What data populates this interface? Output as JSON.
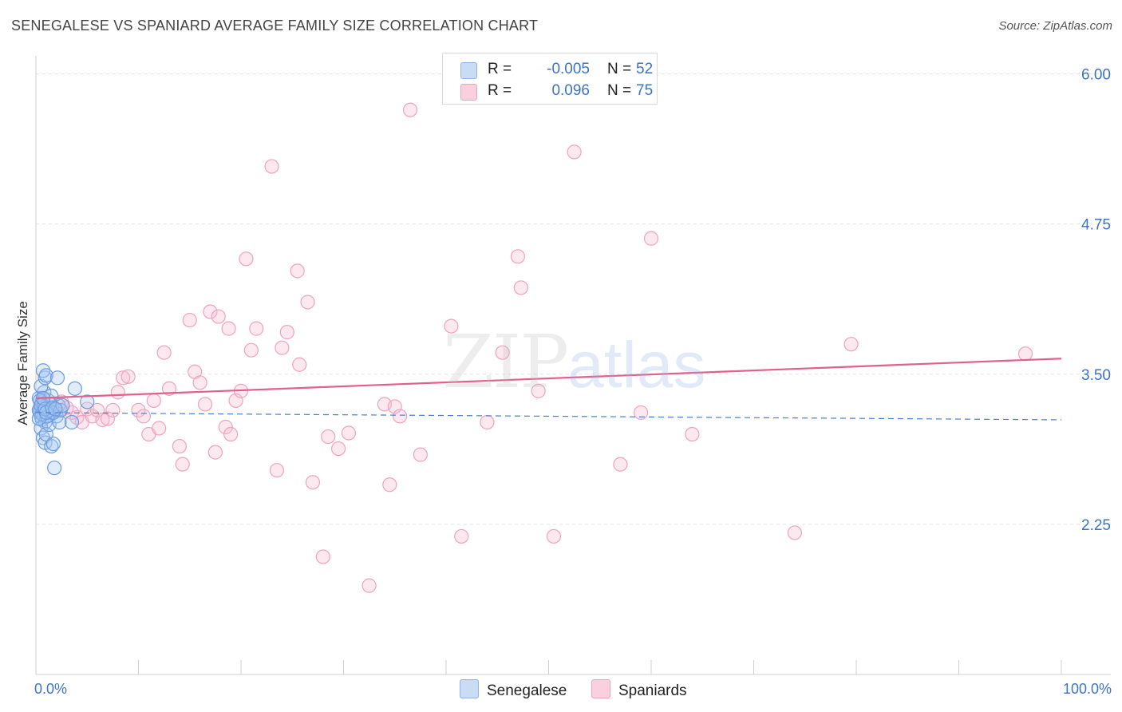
{
  "header": {
    "title": "SENEGALESE VS SPANIARD AVERAGE FAMILY SIZE CORRELATION CHART",
    "source": "Source: ZipAtlas.com"
  },
  "watermark": {
    "left": "ZIP",
    "right": "atlas"
  },
  "legend": {
    "rows": [
      {
        "label": "R =",
        "r": "-0.005",
        "n_label": "N =",
        "n": "52",
        "color": "#aac8f0"
      },
      {
        "label": "R =",
        "r": "0.096",
        "n_label": "N =",
        "n": "75",
        "color": "#f7bcd0"
      }
    ]
  },
  "bottom_legend": [
    {
      "label": "Senegalese",
      "color": "#aac8f0"
    },
    {
      "label": "Spaniards",
      "color": "#f7bcd0"
    }
  ],
  "chart_data": {
    "type": "scatter",
    "title": "SENEGALESE VS SPANIARD AVERAGE FAMILY SIZE CORRELATION CHART",
    "xlabel": "",
    "ylabel": "Average Family Size",
    "xlim": [
      0,
      100
    ],
    "ylim": [
      1.0,
      6.15
    ],
    "x_tick_labels": [
      "0.0%",
      "100.0%"
    ],
    "y_ticks": [
      2.25,
      3.5,
      4.75,
      6.0
    ],
    "y_tick_labels": [
      "2.25",
      "3.50",
      "4.75",
      "6.00"
    ],
    "colors": {
      "senegalese": "#5a8fd6",
      "spaniards": "#e57aa0",
      "senegalese_line": "#4a7fd0",
      "spaniards_line": "#e0608e"
    },
    "series": [
      {
        "name": "Senegalese",
        "trend": {
          "x": [
            0,
            100
          ],
          "y": [
            3.18,
            3.12
          ],
          "style": "dashed"
        },
        "points": [
          [
            0.3,
            3.3
          ],
          [
            0.4,
            3.22
          ],
          [
            0.5,
            3.15
          ],
          [
            0.6,
            3.27
          ],
          [
            0.7,
            3.2
          ],
          [
            0.8,
            3.35
          ],
          [
            0.5,
            3.4
          ],
          [
            0.9,
            3.47
          ],
          [
            0.7,
            3.53
          ],
          [
            1.0,
            3.49
          ],
          [
            0.4,
            3.18
          ],
          [
            0.6,
            3.12
          ],
          [
            0.8,
            3.25
          ],
          [
            1.1,
            3.22
          ],
          [
            1.2,
            3.28
          ],
          [
            1.3,
            3.16
          ],
          [
            0.9,
            3.1
          ],
          [
            1.4,
            3.2
          ],
          [
            1.5,
            3.32
          ],
          [
            1.6,
            3.18
          ],
          [
            0.5,
            3.05
          ],
          [
            0.7,
            2.97
          ],
          [
            0.9,
            2.93
          ],
          [
            1.0,
            3.0
          ],
          [
            1.3,
            3.08
          ],
          [
            1.5,
            2.9
          ],
          [
            1.7,
            2.92
          ],
          [
            1.8,
            2.72
          ],
          [
            2.0,
            3.15
          ],
          [
            2.2,
            3.24
          ],
          [
            2.3,
            3.1
          ],
          [
            2.1,
            3.47
          ],
          [
            3.8,
            3.38
          ],
          [
            5.0,
            3.27
          ],
          [
            3.5,
            3.1
          ],
          [
            0.3,
            3.2
          ],
          [
            0.4,
            3.28
          ],
          [
            0.6,
            3.17
          ],
          [
            0.8,
            3.23
          ],
          [
            1.1,
            3.15
          ],
          [
            1.2,
            3.2
          ],
          [
            1.4,
            3.25
          ],
          [
            1.7,
            3.18
          ],
          [
            0.3,
            3.13
          ],
          [
            0.5,
            3.24
          ],
          [
            0.7,
            3.3
          ],
          [
            0.9,
            3.21
          ],
          [
            1.0,
            3.18
          ],
          [
            1.6,
            3.22
          ],
          [
            2.4,
            3.2
          ],
          [
            2.6,
            3.24
          ],
          [
            1.9,
            3.21
          ]
        ]
      },
      {
        "name": "Spaniards",
        "trend": {
          "x": [
            0,
            100
          ],
          "y": [
            3.3,
            3.63
          ],
          "style": "solid"
        },
        "points": [
          [
            1.5,
            3.25
          ],
          [
            2.0,
            3.2
          ],
          [
            2.5,
            3.27
          ],
          [
            3.0,
            3.22
          ],
          [
            3.5,
            3.18
          ],
          [
            4.0,
            3.14
          ],
          [
            4.5,
            3.1
          ],
          [
            5.0,
            3.21
          ],
          [
            5.5,
            3.15
          ],
          [
            6.0,
            3.2
          ],
          [
            6.5,
            3.12
          ],
          [
            7.0,
            3.13
          ],
          [
            7.5,
            3.2
          ],
          [
            8.0,
            3.35
          ],
          [
            8.5,
            3.47
          ],
          [
            9.0,
            3.48
          ],
          [
            10.0,
            3.2
          ],
          [
            10.5,
            3.15
          ],
          [
            11.0,
            3.0
          ],
          [
            11.5,
            3.28
          ],
          [
            12.0,
            3.05
          ],
          [
            12.5,
            3.68
          ],
          [
            13.0,
            3.38
          ],
          [
            14.0,
            2.9
          ],
          [
            14.3,
            2.75
          ],
          [
            15.0,
            3.95
          ],
          [
            15.5,
            3.52
          ],
          [
            16.0,
            3.43
          ],
          [
            16.5,
            3.25
          ],
          [
            17.0,
            4.02
          ],
          [
            17.5,
            2.85
          ],
          [
            17.8,
            3.98
          ],
          [
            18.5,
            3.06
          ],
          [
            18.8,
            3.88
          ],
          [
            19.0,
            3.0
          ],
          [
            19.5,
            3.28
          ],
          [
            20.0,
            3.36
          ],
          [
            20.5,
            4.46
          ],
          [
            21.0,
            3.7
          ],
          [
            21.5,
            3.88
          ],
          [
            23.0,
            5.23
          ],
          [
            23.5,
            2.7
          ],
          [
            24.0,
            3.72
          ],
          [
            24.5,
            3.85
          ],
          [
            25.5,
            4.36
          ],
          [
            25.7,
            3.58
          ],
          [
            26.5,
            4.1
          ],
          [
            27.0,
            2.6
          ],
          [
            28.0,
            1.98
          ],
          [
            28.5,
            2.98
          ],
          [
            29.5,
            2.88
          ],
          [
            30.5,
            3.01
          ],
          [
            32.5,
            1.74
          ],
          [
            34.0,
            3.25
          ],
          [
            34.5,
            2.58
          ],
          [
            35.0,
            3.23
          ],
          [
            35.5,
            3.15
          ],
          [
            36.5,
            5.7
          ],
          [
            37.5,
            2.83
          ],
          [
            40.5,
            3.9
          ],
          [
            41.5,
            2.15
          ],
          [
            44.0,
            3.1
          ],
          [
            45.5,
            3.68
          ],
          [
            47.0,
            4.48
          ],
          [
            47.3,
            4.22
          ],
          [
            49.0,
            3.36
          ],
          [
            50.5,
            2.15
          ],
          [
            52.5,
            5.35
          ],
          [
            57.0,
            2.75
          ],
          [
            59.0,
            3.18
          ],
          [
            60.0,
            4.63
          ],
          [
            64.0,
            3.0
          ],
          [
            74.0,
            2.18
          ],
          [
            79.5,
            3.75
          ],
          [
            96.5,
            3.67
          ]
        ]
      }
    ]
  }
}
